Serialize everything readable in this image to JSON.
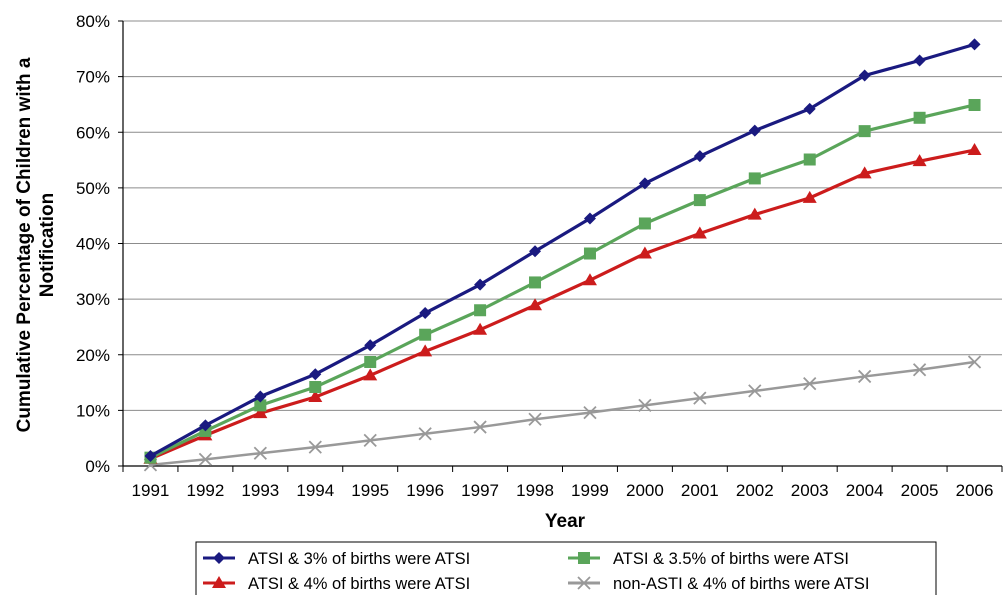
{
  "chart_data": {
    "type": "line",
    "title": "",
    "xlabel": "Year",
    "ylabel": "Cumulative Percentage of Children with a Notification",
    "ylabel_lines": [
      "Cumulative Percentage of Children with a",
      "Notification"
    ],
    "categories": [
      "1991",
      "1992",
      "1993",
      "1994",
      "1995",
      "1996",
      "1997",
      "1998",
      "1999",
      "2000",
      "2001",
      "2002",
      "2003",
      "2004",
      "2005",
      "2006"
    ],
    "ylim": [
      0,
      80
    ],
    "yticks": [
      "0%",
      "10%",
      "20%",
      "30%",
      "40%",
      "50%",
      "60%",
      "70%",
      "80%"
    ],
    "grid": "horizontal",
    "legend_position": "bottom",
    "series": [
      {
        "name": "ATSI & 3% of births were ATSI",
        "color": "#1a1a80",
        "marker": "diamond",
        "values": [
          1.8,
          7.3,
          12.5,
          16.5,
          21.7,
          27.5,
          32.6,
          38.6,
          44.5,
          50.8,
          55.7,
          60.3,
          64.2,
          70.2,
          72.9,
          75.8
        ]
      },
      {
        "name": "ATSI & 3.5% of births were ATSI",
        "color": "#5aa55a",
        "marker": "square",
        "values": [
          1.5,
          6.3,
          10.9,
          14.2,
          18.7,
          23.6,
          28.0,
          33.0,
          38.2,
          43.6,
          47.8,
          51.7,
          55.1,
          60.2,
          62.6,
          64.9
        ]
      },
      {
        "name": "ATSI & 4% of births were ATSI",
        "color": "#cc1c1c",
        "marker": "triangle",
        "values": [
          1.3,
          5.5,
          9.5,
          12.4,
          16.3,
          20.6,
          24.5,
          28.9,
          33.4,
          38.2,
          41.8,
          45.2,
          48.2,
          52.6,
          54.8,
          56.8
        ]
      },
      {
        "name": "non-ASTI & 4% of births were ATSI",
        "color": "#999999",
        "marker": "x",
        "values": [
          0.2,
          1.2,
          2.3,
          3.4,
          4.6,
          5.8,
          7.0,
          8.4,
          9.6,
          10.9,
          12.2,
          13.5,
          14.8,
          16.1,
          17.3,
          18.7
        ]
      }
    ]
  }
}
